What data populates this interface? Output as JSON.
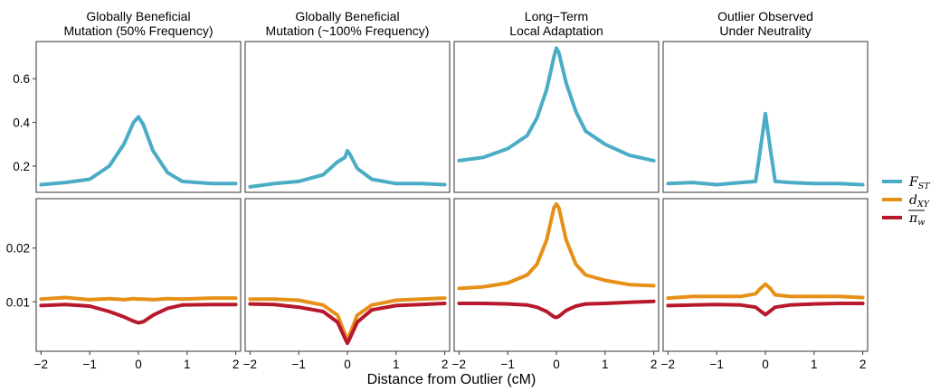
{
  "colors": {
    "fst": "#4BACC6",
    "dxy": "#E69018",
    "pi": "#B8182B"
  },
  "chart_data": {
    "type": "line",
    "xlabel": "Distance from Outlier (cM)",
    "ylabel": "",
    "xlim": [
      -2.1,
      2.1
    ],
    "xticks": [
      -2,
      -1,
      0,
      1,
      2
    ],
    "xtick_labels": [
      "−2",
      "−1",
      "0",
      "1",
      "2"
    ],
    "rows": [
      {
        "name": "fst",
        "ylim": [
          0.08,
          0.77
        ],
        "yticks": [
          0.2,
          0.4,
          0.6
        ],
        "ytick_labels": [
          "0.2",
          "0.4",
          "0.6"
        ]
      },
      {
        "name": "diversity",
        "ylim": [
          0.0008,
          0.0292
        ],
        "yticks": [
          0.01,
          0.02
        ],
        "ytick_labels": [
          "0.01",
          "0.02"
        ]
      }
    ],
    "legend": {
      "placement": "right",
      "entries": [
        {
          "key": "fst",
          "main": "F",
          "sub": "ST"
        },
        {
          "key": "dxy",
          "main": "d",
          "sub": "XY"
        },
        {
          "key": "pi",
          "main": "π",
          "sub": "w"
        }
      ]
    },
    "panels": [
      {
        "title": [
          "Globally Beneficial",
          "Mutation (50% Frequency)"
        ],
        "x": [
          -2,
          -1.5,
          -1,
          -0.6,
          -0.3,
          -0.1,
          0,
          0.1,
          0.3,
          0.6,
          0.9,
          1.5,
          2
        ],
        "fst": [
          0.115,
          0.125,
          0.14,
          0.2,
          0.3,
          0.4,
          0.425,
          0.39,
          0.27,
          0.17,
          0.13,
          0.12,
          0.12
        ],
        "dxy": [
          0.0105,
          0.0108,
          0.0104,
          0.0106,
          0.0104,
          0.0106,
          0.0105,
          0.0105,
          0.0104,
          0.0106,
          0.0105,
          0.0107,
          0.0107
        ],
        "pi": [
          0.0093,
          0.0095,
          0.0092,
          0.0082,
          0.0072,
          0.0064,
          0.0061,
          0.0063,
          0.0075,
          0.0088,
          0.0094,
          0.0095,
          0.0095
        ]
      },
      {
        "title": [
          "Globally Beneficial",
          "Mutation (~100% Frequency)"
        ],
        "x": [
          -2,
          -1.5,
          -1,
          -0.5,
          -0.2,
          -0.05,
          0,
          0.05,
          0.2,
          0.5,
          1,
          1.5,
          2
        ],
        "fst": [
          0.105,
          0.12,
          0.13,
          0.16,
          0.22,
          0.24,
          0.27,
          0.255,
          0.19,
          0.14,
          0.12,
          0.12,
          0.115
        ],
        "dxy": [
          0.0105,
          0.0105,
          0.0103,
          0.0094,
          0.0075,
          0.004,
          0.0028,
          0.004,
          0.0075,
          0.0094,
          0.0103,
          0.0105,
          0.0107
        ],
        "pi": [
          0.0096,
          0.0095,
          0.009,
          0.0082,
          0.0062,
          0.0032,
          0.0023,
          0.0032,
          0.0062,
          0.0085,
          0.0093,
          0.0095,
          0.0097
        ]
      },
      {
        "title": [
          "Long−Term",
          "Local Adaptation"
        ],
        "x": [
          -2,
          -1.5,
          -1,
          -0.6,
          -0.4,
          -0.2,
          -0.05,
          0,
          0.05,
          0.2,
          0.4,
          0.6,
          1,
          1.5,
          2
        ],
        "fst": [
          0.225,
          0.24,
          0.28,
          0.34,
          0.42,
          0.55,
          0.7,
          0.74,
          0.72,
          0.58,
          0.45,
          0.36,
          0.3,
          0.25,
          0.225
        ],
        "dxy": [
          0.0125,
          0.0128,
          0.0135,
          0.015,
          0.017,
          0.0215,
          0.0275,
          0.0282,
          0.0275,
          0.0215,
          0.017,
          0.015,
          0.014,
          0.0132,
          0.013
        ],
        "pi": [
          0.0097,
          0.0097,
          0.0096,
          0.0094,
          0.009,
          0.0082,
          0.0072,
          0.0071,
          0.0073,
          0.0084,
          0.0092,
          0.0096,
          0.0097,
          0.0099,
          0.0101
        ]
      },
      {
        "title": [
          "Outlier Observed",
          "Under Neutrality"
        ],
        "x": [
          -2,
          -1.5,
          -1,
          -0.5,
          -0.2,
          -0.1,
          0,
          0.1,
          0.2,
          0.5,
          1,
          1.5,
          2
        ],
        "fst": [
          0.12,
          0.125,
          0.115,
          0.125,
          0.13,
          0.28,
          0.44,
          0.28,
          0.13,
          0.125,
          0.12,
          0.12,
          0.115
        ],
        "dxy": [
          0.0107,
          0.011,
          0.011,
          0.011,
          0.0115,
          0.0125,
          0.0133,
          0.0125,
          0.0113,
          0.011,
          0.011,
          0.011,
          0.0108
        ],
        "pi": [
          0.0093,
          0.0094,
          0.0095,
          0.0094,
          0.009,
          0.0083,
          0.0076,
          0.0083,
          0.009,
          0.0094,
          0.0096,
          0.0097,
          0.0097
        ]
      }
    ]
  }
}
